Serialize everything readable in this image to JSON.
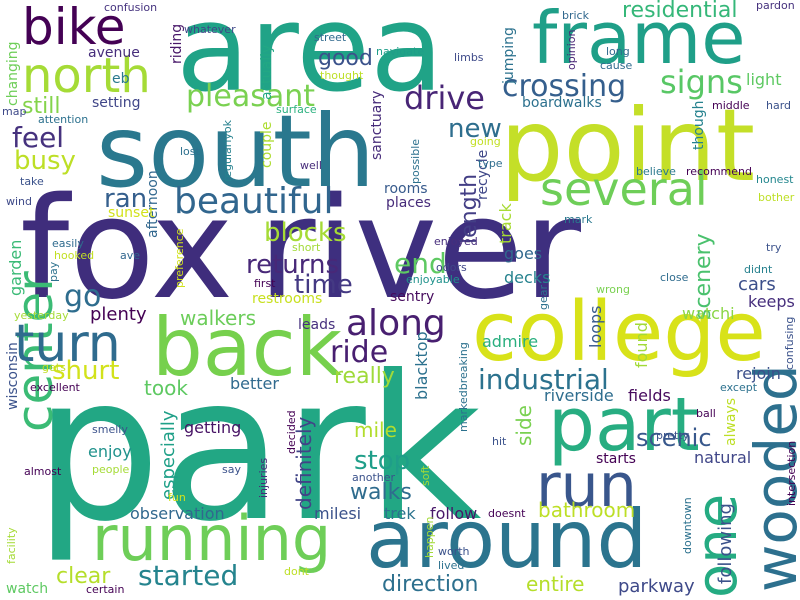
{
  "words": [
    {
      "text": "park",
      "color": "#22a784"
    },
    {
      "text": "fox",
      "color": "#3f2d7c"
    },
    {
      "text": "river",
      "color": "#3e2f7f"
    },
    {
      "text": "area",
      "color": "#20a387"
    },
    {
      "text": "south",
      "color": "#2a788e"
    },
    {
      "text": "point",
      "color": "#c4df28"
    },
    {
      "text": "frame",
      "color": "#1f9f88"
    },
    {
      "text": "college",
      "color": "#d8e219"
    },
    {
      "text": "back",
      "color": "#76d04d"
    },
    {
      "text": "around",
      "color": "#2b748e"
    },
    {
      "text": "running",
      "color": "#6ece58"
    },
    {
      "text": "part",
      "color": "#27ad81"
    },
    {
      "text": "run",
      "color": "#39568c"
    },
    {
      "text": "wooded",
      "color": "#2d708e"
    },
    {
      "text": "bike",
      "color": "#440154"
    },
    {
      "text": "north",
      "color": "#a5db36"
    },
    {
      "text": "center",
      "color": "#3bbb75"
    },
    {
      "text": "turn",
      "color": "#2f6b8e"
    },
    {
      "text": "several",
      "color": "#6ece58"
    },
    {
      "text": "beautiful",
      "color": "#31668e"
    },
    {
      "text": "one",
      "color": "#25ab82"
    },
    {
      "text": "crossing",
      "color": "#355f8d"
    },
    {
      "text": "pleasant",
      "color": "#7ad151"
    },
    {
      "text": "drive",
      "color": "#482576"
    },
    {
      "text": "industrial",
      "color": "#2c728e"
    },
    {
      "text": "along",
      "color": "#481f70"
    },
    {
      "text": "signs",
      "color": "#58c765"
    },
    {
      "text": "residential",
      "color": "#35b779"
    },
    {
      "text": "busy",
      "color": "#bddf26"
    },
    {
      "text": "feel",
      "color": "#46327e"
    },
    {
      "text": "still",
      "color": "#84d44b"
    },
    {
      "text": "go",
      "color": "#2e6d8e"
    },
    {
      "text": "ran",
      "color": "#355f8d"
    },
    {
      "text": "blocks",
      "color": "#a5db36"
    },
    {
      "text": "returns",
      "color": "#482878"
    },
    {
      "text": "time",
      "color": "#443983"
    },
    {
      "text": "end",
      "color": "#5ec962"
    },
    {
      "text": "new",
      "color": "#2e6e8e"
    },
    {
      "text": "length",
      "color": "#433e85"
    },
    {
      "text": "good",
      "color": "#3b528b"
    },
    {
      "text": "scenery",
      "color": "#4ac16d"
    },
    {
      "text": "ride",
      "color": "#481f70"
    },
    {
      "text": "really",
      "color": "#9fda3a"
    },
    {
      "text": "shurt",
      "color": "#d2e21b"
    },
    {
      "text": "walkers",
      "color": "#6ccd5a"
    },
    {
      "text": "plenty",
      "color": "#440154"
    },
    {
      "text": "took",
      "color": "#5ec962"
    },
    {
      "text": "started",
      "color": "#25848e"
    },
    {
      "text": "clear",
      "color": "#b5de2b"
    },
    {
      "text": "direction",
      "color": "#2d708e"
    },
    {
      "text": "entire",
      "color": "#b5de2b"
    },
    {
      "text": "parkway",
      "color": "#3e4989"
    },
    {
      "text": "following",
      "color": "#3b528b"
    },
    {
      "text": "stop",
      "color": "#1f9e89"
    },
    {
      "text": "walks",
      "color": "#2f6c8e"
    },
    {
      "text": "scenic",
      "color": "#38588c"
    },
    {
      "text": "side",
      "color": "#7ad151"
    },
    {
      "text": "bathroom",
      "color": "#bddf26"
    },
    {
      "text": "definitely",
      "color": "#414487"
    },
    {
      "text": "mile",
      "color": "#b2dd2d"
    },
    {
      "text": "especially",
      "color": "#1fa088"
    },
    {
      "text": "observation",
      "color": "#31688e"
    },
    {
      "text": "enjoy",
      "color": "#20928c"
    },
    {
      "text": "getting",
      "color": "#471365"
    },
    {
      "text": "better",
      "color": "#306a8e"
    },
    {
      "text": "milesi",
      "color": "#3b528b"
    },
    {
      "text": "trek",
      "color": "#2c738e"
    },
    {
      "text": "follow",
      "color": "#481769"
    },
    {
      "text": "loops",
      "color": "#375a8c"
    },
    {
      "text": "admire",
      "color": "#29af7f"
    },
    {
      "text": "riverside",
      "color": "#2e6d8e"
    },
    {
      "text": "fields",
      "color": "#460a5d"
    },
    {
      "text": "rejoin",
      "color": "#3c508b"
    },
    {
      "text": "natural",
      "color": "#404688"
    },
    {
      "text": "always",
      "color": "#bddf26"
    },
    {
      "text": "starts",
      "color": "#440154"
    },
    {
      "text": "cars",
      "color": "#3c4f8a"
    },
    {
      "text": "keeps",
      "color": "#472f7d"
    },
    {
      "text": "watchi",
      "color": "#8bd646"
    },
    {
      "text": "found",
      "color": "#a2da37"
    },
    {
      "text": "goes",
      "color": "#31688e"
    },
    {
      "text": "decks",
      "color": "#26828e"
    },
    {
      "text": "sentry",
      "color": "#460b5e"
    },
    {
      "text": "restrooms",
      "color": "#c8e020"
    },
    {
      "text": "leads",
      "color": "#46307e"
    },
    {
      "text": "blacktop",
      "color": "#2c718e"
    },
    {
      "text": "garden",
      "color": "#3aba76"
    },
    {
      "text": "afternoon",
      "color": "#31678e"
    },
    {
      "text": "sunset",
      "color": "#d2e21b"
    },
    {
      "text": "places",
      "color": "#472c7a"
    },
    {
      "text": "rooms",
      "color": "#375a8c"
    },
    {
      "text": "track",
      "color": "#a8db34"
    },
    {
      "text": "recycle",
      "color": "#3f4788"
    },
    {
      "text": "boardwalks",
      "color": "#2d718e"
    },
    {
      "text": "jumping",
      "color": "#2c728e"
    },
    {
      "text": "sanctuary",
      "color": "#472c7a"
    },
    {
      "text": "couple",
      "color": "#addc30"
    },
    {
      "text": "actually",
      "color": "#22a884"
    },
    {
      "text": "riding",
      "color": "#481769"
    },
    {
      "text": "avenue",
      "color": "#472e7c"
    },
    {
      "text": "changing",
      "color": "#6ece58"
    },
    {
      "text": "setting",
      "color": "#404688"
    },
    {
      "text": "eb",
      "color": "#29798e"
    },
    {
      "text": "light",
      "color": "#5ec962"
    },
    {
      "text": "though",
      "color": "#26828e"
    },
    {
      "text": "honest",
      "color": "#24878e"
    },
    {
      "text": "recommend",
      "color": "#440154"
    },
    {
      "text": "believe",
      "color": "#2a788e"
    },
    {
      "text": "middle",
      "color": "#440154"
    },
    {
      "text": "hard",
      "color": "#3b528b"
    },
    {
      "text": "long",
      "color": "#31688e"
    },
    {
      "text": "cause",
      "color": "#306a8e"
    },
    {
      "text": "brick",
      "color": "#31688e"
    },
    {
      "text": "pardon",
      "color": "#46327e"
    },
    {
      "text": "opinion",
      "color": "#482576"
    },
    {
      "text": "limbs",
      "color": "#3e4a89"
    },
    {
      "text": "navigate",
      "color": "#1f9e89"
    },
    {
      "text": "street",
      "color": "#30698e"
    },
    {
      "text": "thought",
      "color": "#bddf26"
    },
    {
      "text": "confusion",
      "color": "#46337f"
    },
    {
      "text": "whatever",
      "color": "#3f4788"
    },
    {
      "text": "map",
      "color": "#3e4989"
    },
    {
      "text": "attention",
      "color": "#2c718e"
    },
    {
      "text": "regularlyok",
      "color": "#26818e"
    },
    {
      "text": "surface",
      "color": "#2ab07f"
    },
    {
      "text": "lost",
      "color": "#2d708e"
    },
    {
      "text": "well",
      "color": "#472c7a"
    },
    {
      "text": "possible",
      "color": "#2d718e"
    },
    {
      "text": "going",
      "color": "#c2df23"
    },
    {
      "text": "type",
      "color": "#2e6d8e"
    },
    {
      "text": "take",
      "color": "#3b528b"
    },
    {
      "text": "wind",
      "color": "#3e4a89"
    },
    {
      "text": "bother",
      "color": "#bddf26"
    },
    {
      "text": "mark",
      "color": "#2a788e"
    },
    {
      "text": "try",
      "color": "#3b528b"
    },
    {
      "text": "easily",
      "color": "#2f6b8e"
    },
    {
      "text": "hooked",
      "color": "#c2df23"
    },
    {
      "text": "ave",
      "color": "#31668e"
    },
    {
      "text": "pay",
      "color": "#2c718e"
    },
    {
      "text": "short",
      "color": "#a2da37"
    },
    {
      "text": "preference",
      "color": "#d0e11c"
    },
    {
      "text": "enjoyed",
      "color": "#472e7c"
    },
    {
      "text": "odors",
      "color": "#3f4788"
    },
    {
      "text": "enjoyable",
      "color": "#20928c"
    },
    {
      "text": "first",
      "color": "#440154"
    },
    {
      "text": "gear",
      "color": "#2c718e"
    },
    {
      "text": "wrong",
      "color": "#7ad151"
    },
    {
      "text": "close",
      "color": "#2f6c8e"
    },
    {
      "text": "didnt",
      "color": "#26818e"
    },
    {
      "text": "yesterday",
      "color": "#a5db36"
    },
    {
      "text": "wisconsin",
      "color": "#3b528b"
    },
    {
      "text": "excellent",
      "color": "#440154"
    },
    {
      "text": "gets",
      "color": "#c2df23"
    },
    {
      "text": "smelly",
      "color": "#3b528b"
    },
    {
      "text": "almost",
      "color": "#440154"
    },
    {
      "text": "people",
      "color": "#a5db36"
    },
    {
      "text": "say",
      "color": "#3b528b"
    },
    {
      "text": "fun",
      "color": "#d0e11c"
    },
    {
      "text": "injuries",
      "color": "#472c7a"
    },
    {
      "text": "decided",
      "color": "#440154"
    },
    {
      "text": "soft",
      "color": "#a2da37"
    },
    {
      "text": "another",
      "color": "#3b528b"
    },
    {
      "text": "markedbreaking",
      "color": "#2c718e"
    },
    {
      "text": "hit",
      "color": "#3b528b"
    },
    {
      "text": "doesnt",
      "color": "#440154"
    },
    {
      "text": "happen",
      "color": "#a2da37"
    },
    {
      "text": "worth",
      "color": "#3b528b"
    },
    {
      "text": "lived",
      "color": "#2c718e"
    },
    {
      "text": "dont",
      "color": "#bddf26"
    },
    {
      "text": "certain",
      "color": "#440154"
    },
    {
      "text": "watch",
      "color": "#5ec962"
    },
    {
      "text": "facility",
      "color": "#a5db36"
    },
    {
      "text": "ball",
      "color": "#440154"
    },
    {
      "text": "pretty",
      "color": "#3b528b"
    },
    {
      "text": "except",
      "color": "#2c718e"
    },
    {
      "text": "confusing",
      "color": "#3b528b"
    },
    {
      "text": "intersection",
      "color": "#440154"
    },
    {
      "text": "downtown",
      "color": "#2c718e"
    }
  ]
}
